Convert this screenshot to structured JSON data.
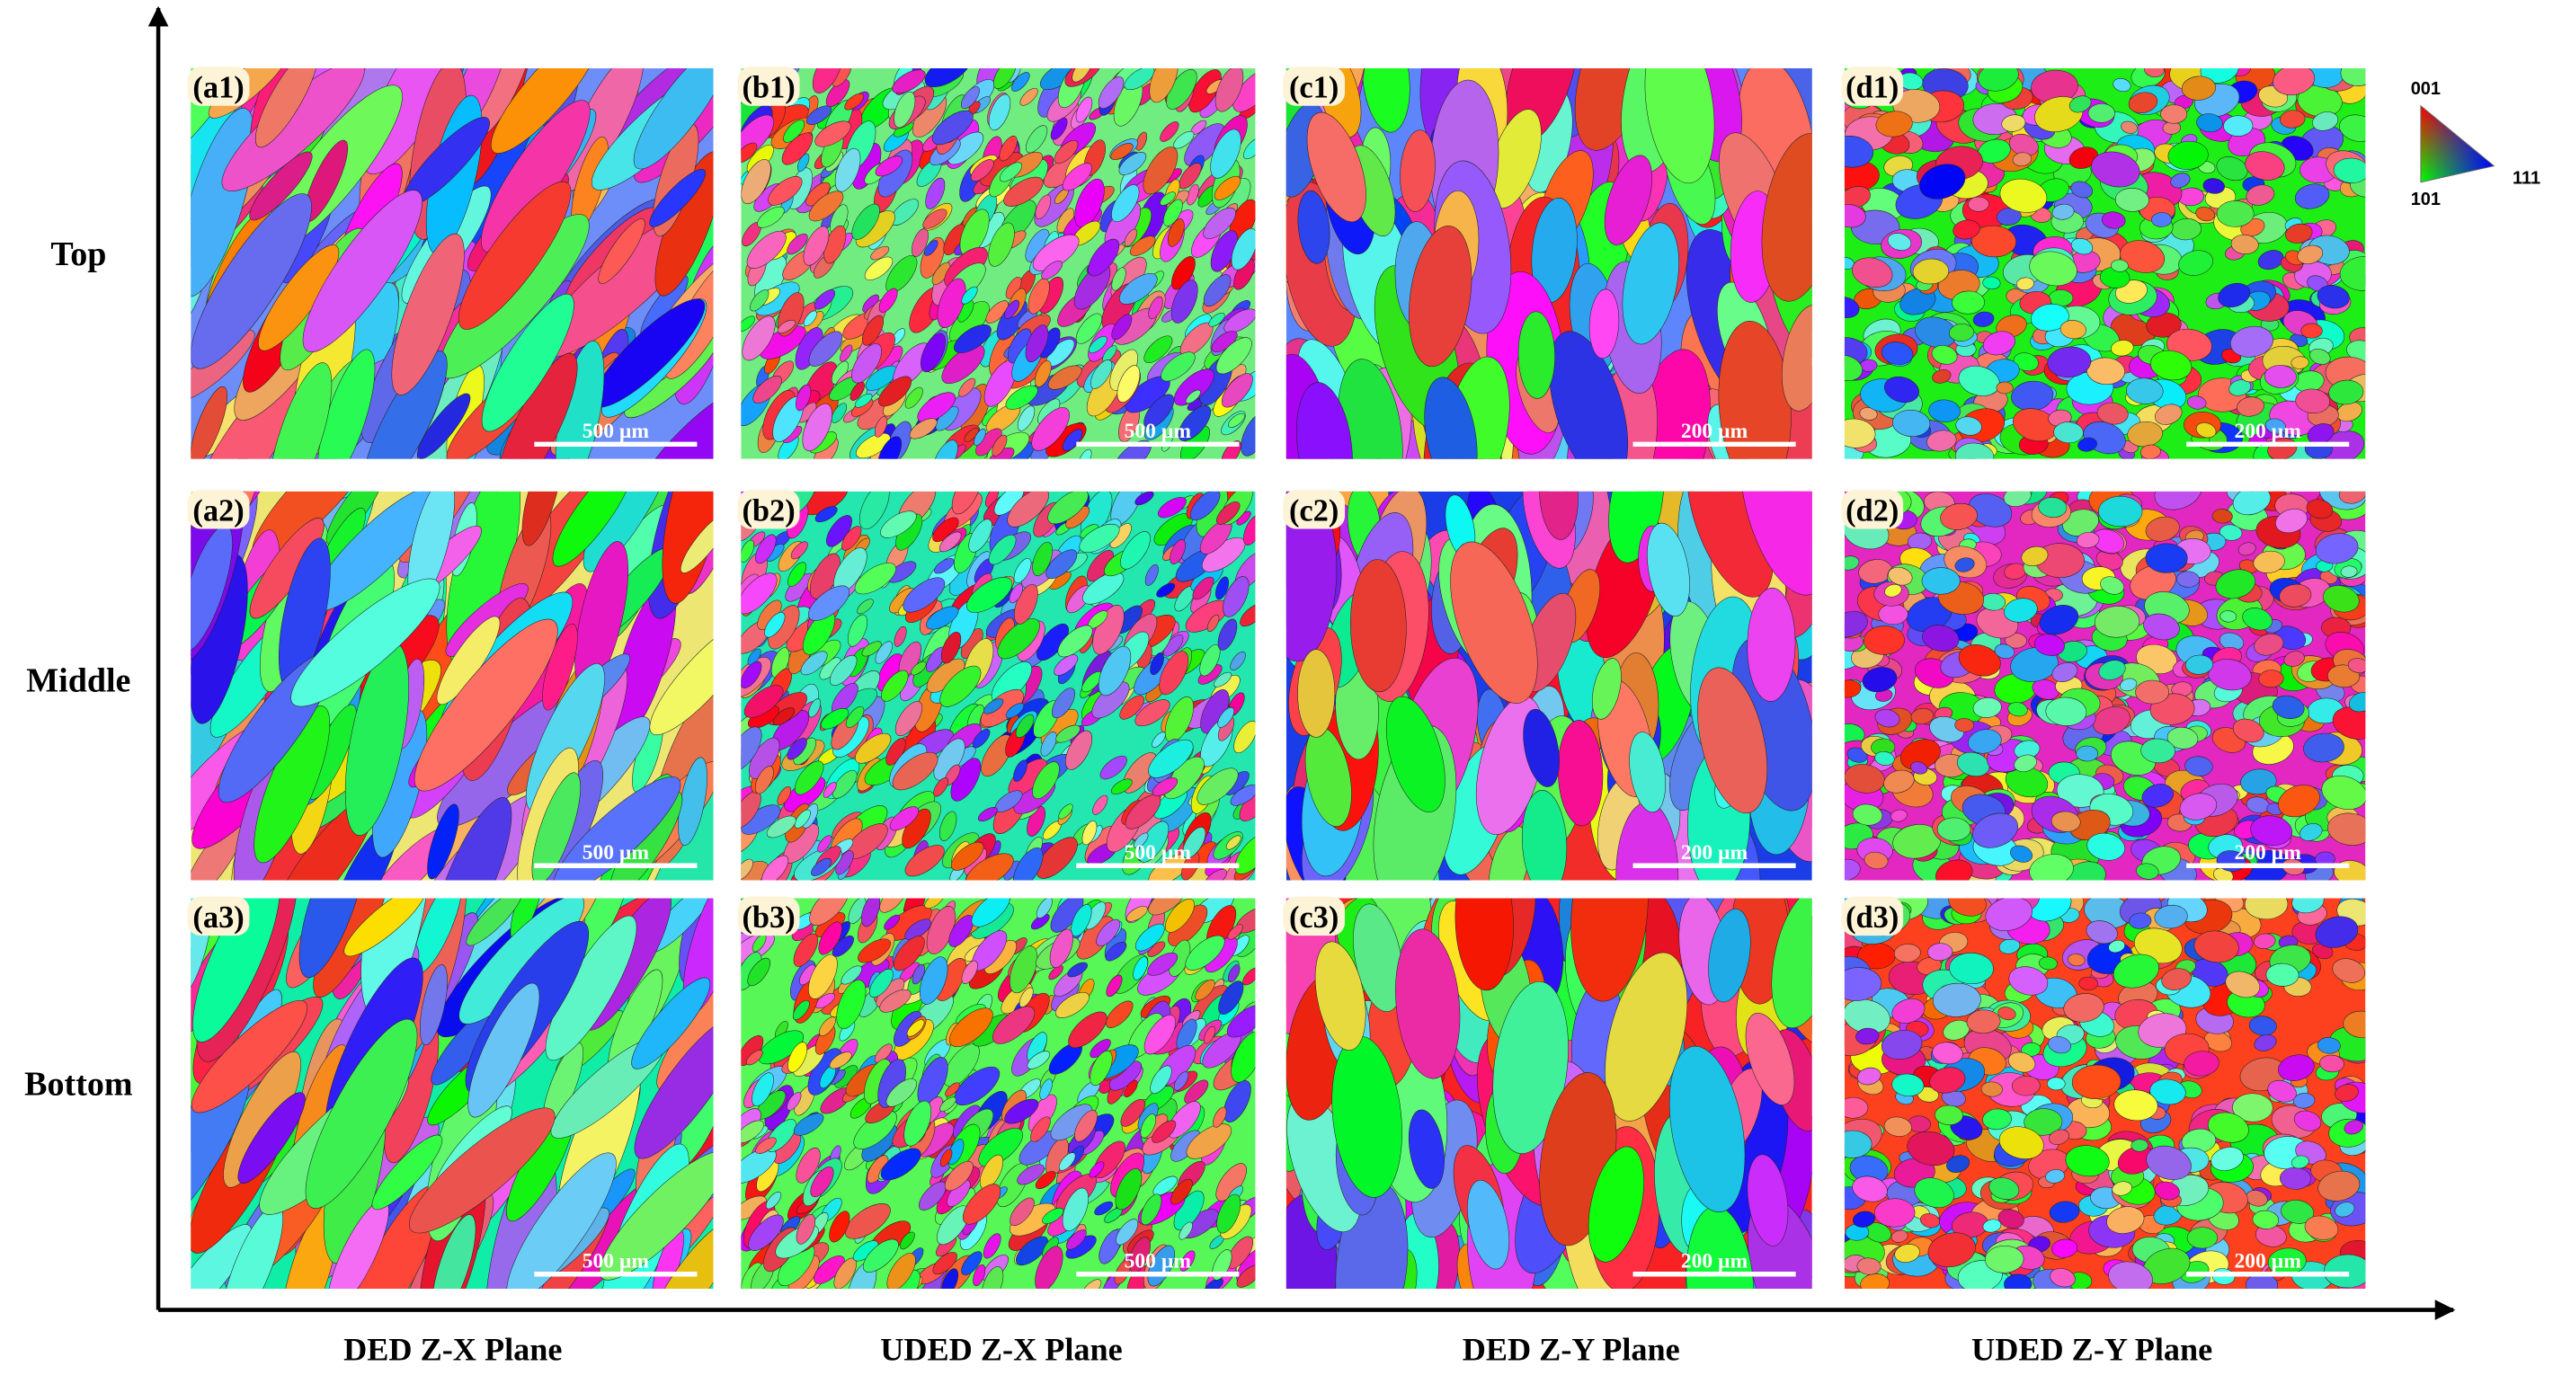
{
  "row_labels": [
    "Top",
    "Middle",
    "Bottom"
  ],
  "column_labels": [
    "DED Z-X Plane",
    "UDED Z-X Plane",
    "DED Z-Y Plane",
    "UDED Z-Y Plane"
  ],
  "panels": [
    {
      "label": "(a1)",
      "scale_bar": "500 µm"
    },
    {
      "label": "(b1)",
      "scale_bar": "500 µm"
    },
    {
      "label": "(c1)",
      "scale_bar": "200 µm"
    },
    {
      "label": "(d1)",
      "scale_bar": "200 µm"
    },
    {
      "label": "(a2)",
      "scale_bar": "500 µm"
    },
    {
      "label": "(b2)",
      "scale_bar": "500 µm"
    },
    {
      "label": "(c2)",
      "scale_bar": "200 µm"
    },
    {
      "label": "(d2)",
      "scale_bar": "200 µm"
    },
    {
      "label": "(a3)",
      "scale_bar": "500 µm"
    },
    {
      "label": "(b3)",
      "scale_bar": "500 µm"
    },
    {
      "label": "(c3)",
      "scale_bar": "200 µm"
    },
    {
      "label": "(d3)",
      "scale_bar": "200 µm"
    }
  ],
  "legend": {
    "top": "001",
    "right": "111",
    "bottom": "101"
  }
}
